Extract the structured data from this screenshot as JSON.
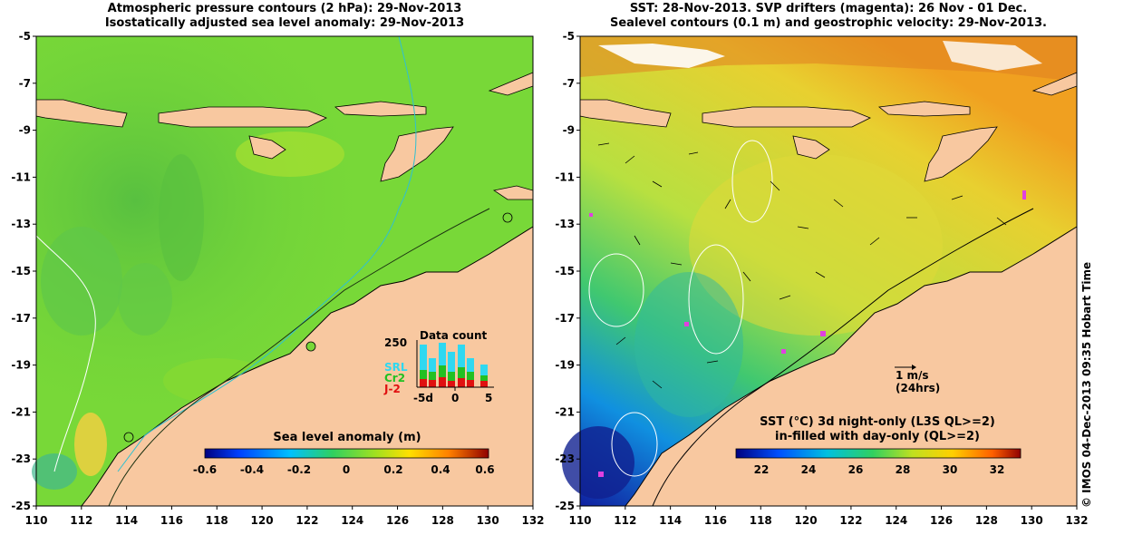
{
  "left_panel": {
    "title_line1": "Atmospheric pressure contours (2 hPa): 29-Nov-2013",
    "title_line2": "Isostatically adjusted sea level anomaly: 29-Nov-2013",
    "colorbar_title": "Sea level anomaly (m)",
    "colorbar_ticks": [
      "-0.6",
      "-0.4",
      "-0.2",
      "0",
      "0.2",
      "0.4",
      "0.6"
    ],
    "inset": {
      "title": "Data count",
      "max_label": "250",
      "legend": [
        {
          "label": "SRL",
          "color": "#2fd8f0"
        },
        {
          "label": "Cr2",
          "color": "#22c022"
        },
        {
          "label": "J-2",
          "color": "#e01010"
        }
      ],
      "x_ticks": [
        "-5d",
        "0",
        "5"
      ]
    }
  },
  "right_panel": {
    "title_line1": "SST: 28-Nov-2013. SVP drifters (magenta): 26 Nov - 01 Dec.",
    "title_line2": "Sealevel contours (0.1 m) and geostrophic velocity: 29-Nov-2013.",
    "scale_arrow_label": "1 m/s",
    "scale_arrow_sub": "(24hrs)",
    "colorbar_title_line1": "SST (°C)  3d night-only (L3S QL>=2)",
    "colorbar_title_line2": "in-filled with day-only (QL>=2)",
    "colorbar_ticks": [
      "22",
      "24",
      "26",
      "28",
      "30",
      "32"
    ]
  },
  "axes": {
    "y_ticks": [
      "-5",
      "-7",
      "-9",
      "-11",
      "-13",
      "-15",
      "-17",
      "-19",
      "-21",
      "-23",
      "-25"
    ],
    "x_ticks": [
      "110",
      "112",
      "114",
      "116",
      "118",
      "120",
      "122",
      "124",
      "126",
      "128",
      "130",
      "132"
    ]
  },
  "credit": "© IMOS 04-Dec-2013 09:35 Hobart Time",
  "colors": {
    "land": "#f8c8a0",
    "ocean_left": "#6fd03a",
    "ocean_right": "#b8e040"
  }
}
